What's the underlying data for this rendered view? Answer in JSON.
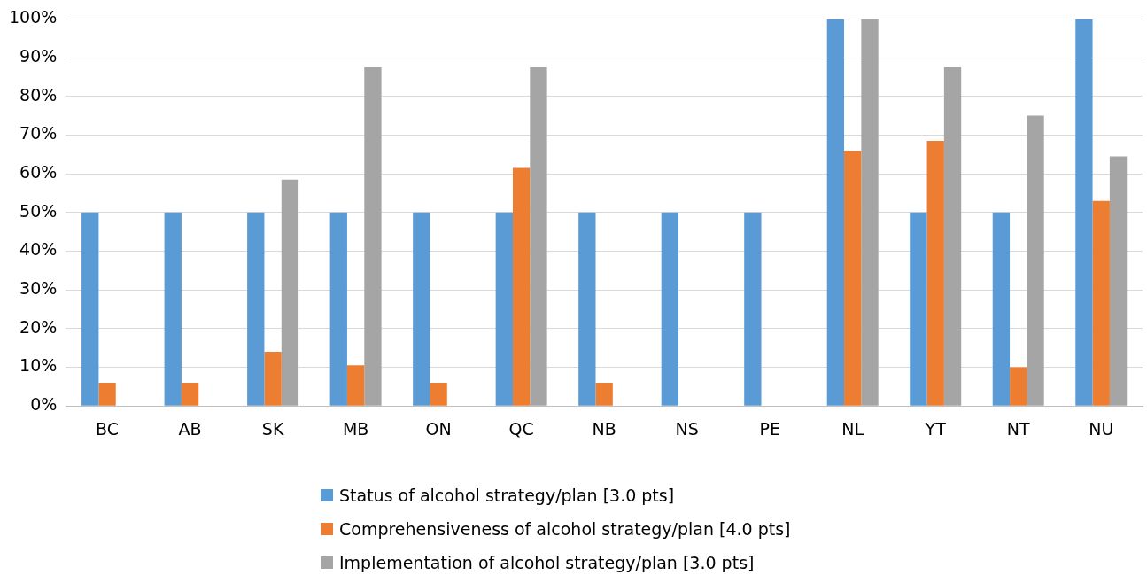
{
  "chart_data": {
    "type": "bar",
    "categories": [
      "BC",
      "AB",
      "SK",
      "MB",
      "ON",
      "QC",
      "NB",
      "NS",
      "PE",
      "NL",
      "YT",
      "NT",
      "NU"
    ],
    "series": [
      {
        "name": "Status of alcohol strategy/plan [3.0 pts]",
        "color": "#5b9bd5",
        "values": [
          50,
          50,
          50,
          50,
          50,
          50,
          50,
          50,
          50,
          100,
          50,
          50,
          100
        ]
      },
      {
        "name": "Comprehensiveness of alcohol strategy/plan [4.0 pts]",
        "color": "#ed7d31",
        "values": [
          6,
          6,
          14,
          10.5,
          6,
          61.5,
          6,
          0,
          0,
          66,
          68.5,
          10,
          53
        ]
      },
      {
        "name": "Implementation of alcohol strategy/plan [3.0 pts]",
        "color": "#a5a5a5",
        "values": [
          0,
          0,
          58.5,
          87.5,
          0,
          87.5,
          0,
          0,
          0,
          100,
          87.5,
          75,
          64.5
        ]
      }
    ],
    "ylim": [
      0,
      100
    ],
    "yticks": [
      {
        "value": 0,
        "label": "0%"
      },
      {
        "value": 10,
        "label": "10%"
      },
      {
        "value": 20,
        "label": "20%"
      },
      {
        "value": 30,
        "label": "30%"
      },
      {
        "value": 40,
        "label": "40%"
      },
      {
        "value": 50,
        "label": "50%"
      },
      {
        "value": 60,
        "label": "60%"
      },
      {
        "value": 70,
        "label": "70%"
      },
      {
        "value": 80,
        "label": "80%"
      },
      {
        "value": 90,
        "label": "90%"
      },
      {
        "value": 100,
        "label": "100%"
      }
    ],
    "grid": "y",
    "legend": "bottom"
  }
}
